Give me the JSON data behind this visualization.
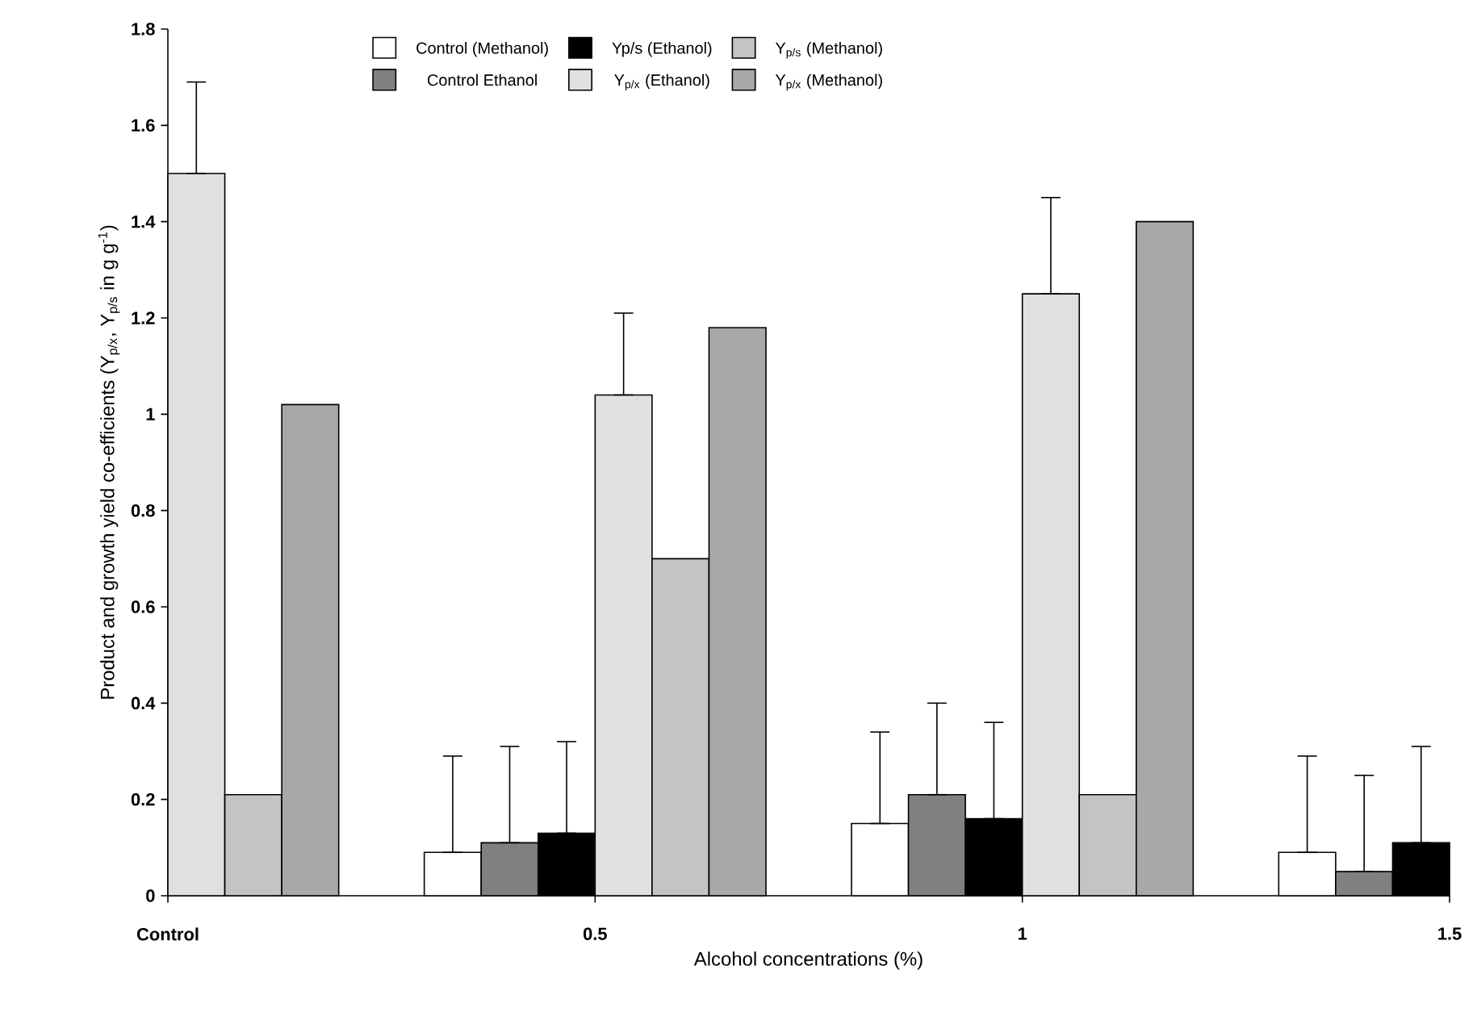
{
  "chart_data": {
    "type": "bar",
    "xlabel": "Alcohol concentrations (%)",
    "ylabel": "Product and growth yield co-efficients (Y$_{p/x}$, Y$_{p/s}$ in g g$^{-1}$)",
    "categories": [
      "Control",
      "0.5",
      "1",
      "1.5"
    ],
    "series": [
      {
        "name": "Control (Methanol)",
        "color": "#ffffff",
        "values": [
          null,
          0.09,
          0.15,
          0.09
        ],
        "errors": [
          null,
          [
            0.09,
            0.29
          ],
          [
            0.15,
            0.34
          ],
          [
            0.09,
            0.29
          ]
        ]
      },
      {
        "name": "Control Ethanol",
        "color": "#808080",
        "values": [
          null,
          0.11,
          0.21,
          0.05
        ],
        "errors": [
          null,
          [
            0.11,
            0.31
          ],
          [
            0.21,
            0.4
          ],
          [
            0.05,
            0.25
          ]
        ]
      },
      {
        "name": "Yp/s (Ethanol)",
        "color": "#000000",
        "values": [
          null,
          0.13,
          0.16,
          0.11
        ],
        "errors": [
          null,
          [
            0.13,
            0.32
          ],
          [
            0.16,
            0.36
          ],
          [
            0.11,
            0.31
          ]
        ]
      },
      {
        "name": "Y$_{p/x}$ (Ethanol)",
        "color": "#e0e0e0",
        "values": [
          1.5,
          1.04,
          1.25,
          null
        ],
        "errors": [
          [
            1.5,
            1.69
          ],
          [
            1.04,
            1.21
          ],
          [
            1.25,
            1.45
          ],
          null
        ]
      },
      {
        "name": "Y$_{p/s}$ (Methanol)",
        "color": "#c4c4c4",
        "values": [
          0.21,
          0.7,
          0.21,
          null
        ]
      },
      {
        "name": "Y$_{p/x}$ (Methanol)",
        "color": "#a8a8a8",
        "values": [
          1.02,
          1.18,
          1.4,
          null
        ]
      }
    ],
    "ylim": [
      0,
      1.8
    ],
    "yticks": [
      0,
      0.2,
      0.4,
      0.6,
      0.8,
      1,
      1.2,
      1.4,
      1.6,
      1.8
    ],
    "grid": false,
    "legend": "top"
  }
}
